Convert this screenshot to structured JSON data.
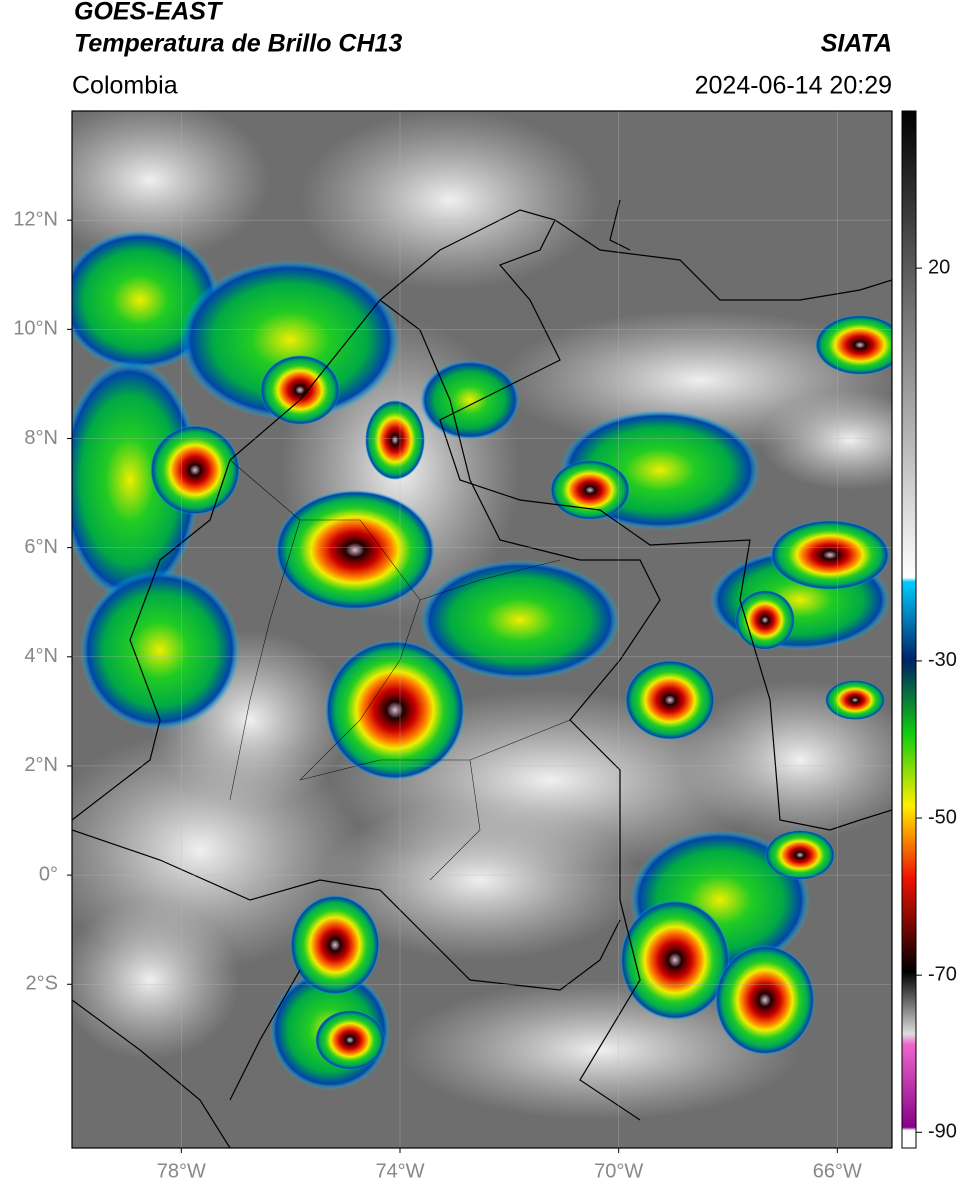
{
  "header": {
    "title": "GOES-EAST",
    "subtitle": "Temperatura de Brillo CH13",
    "source": "SIATA",
    "region": "Colombia",
    "datetime": "2024-06-14 20:29"
  },
  "map": {
    "lonlim": [
      -80,
      -65
    ],
    "latlim": [
      -5,
      14
    ],
    "lonticks": [
      {
        "value": -78,
        "label": "78°W"
      },
      {
        "value": -74,
        "label": "74°W"
      },
      {
        "value": -70,
        "label": "70°W"
      },
      {
        "value": -66,
        "label": "66°W"
      }
    ],
    "latticks": [
      {
        "value": 12,
        "label": "12°N"
      },
      {
        "value": 10,
        "label": "10°N"
      },
      {
        "value": 8,
        "label": "8°N"
      },
      {
        "value": 6,
        "label": "6°N"
      },
      {
        "value": 4,
        "label": "4°N"
      },
      {
        "value": 2,
        "label": "2°N"
      },
      {
        "value": 0,
        "label": "0°"
      },
      {
        "value": -2,
        "label": "2°S"
      }
    ],
    "grid": true
  },
  "colorbar": {
    "lim": [
      40,
      -92
    ],
    "ticks": [
      20,
      -30,
      -50,
      -70,
      -90
    ]
  }
}
